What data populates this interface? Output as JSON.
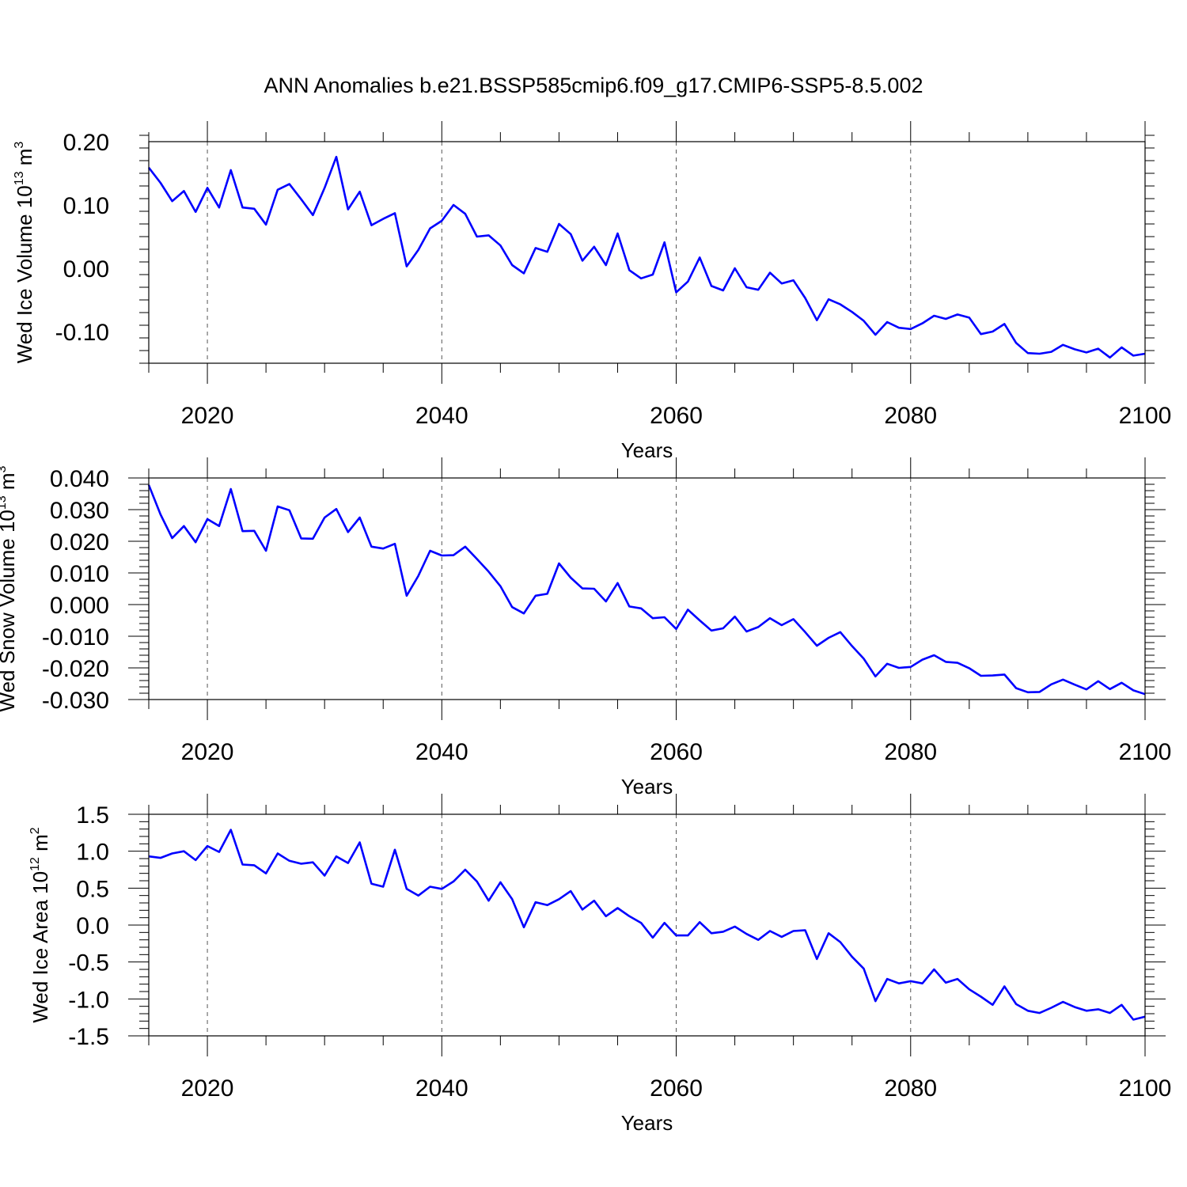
{
  "title": "ANN Anomalies b.e21.BSSP585cmip6.f09_g17.CMIP6-SSP5-8.5.002",
  "colors": {
    "line": "#0000ff",
    "axes": "#000000",
    "grid": "#555555"
  },
  "chart_data": [
    {
      "type": "line",
      "ylabel": {
        "main": "Wed Ice Volume 10",
        "exp": "13",
        "post": " m",
        "unit_exp": "3"
      },
      "xlabel": "Years",
      "xlim": [
        2015,
        2100
      ],
      "ylim": [
        -0.15,
        0.2
      ],
      "xticks": [
        2020,
        2040,
        2060,
        2080,
        2100
      ],
      "yticks": [
        -0.1,
        0.0,
        0.1,
        0.2
      ],
      "ytick_labels": [
        "-0.10",
        "0.00",
        "0.10",
        "0.20"
      ],
      "x_grid": "dashed at major x ticks",
      "series": [
        {
          "x": [
            2015,
            2016,
            2017,
            2018,
            2019,
            2020,
            2021,
            2022,
            2023,
            2024,
            2025,
            2026,
            2027,
            2028,
            2029,
            2030,
            2031,
            2032,
            2033,
            2034,
            2035,
            2036,
            2037,
            2038,
            2039,
            2040,
            2041,
            2042,
            2043,
            2044,
            2045,
            2046,
            2047,
            2048,
            2049,
            2050,
            2051,
            2052,
            2053,
            2054,
            2055,
            2056,
            2057,
            2058,
            2059,
            2060,
            2061,
            2062,
            2063,
            2064,
            2065,
            2066,
            2067,
            2068,
            2069,
            2070,
            2071,
            2072,
            2073,
            2074,
            2075,
            2076,
            2077,
            2078,
            2079,
            2080,
            2081,
            2082,
            2083,
            2084,
            2085,
            2086,
            2087,
            2088,
            2089,
            2090,
            2091,
            2092,
            2093,
            2094,
            2095,
            2096,
            2097,
            2098,
            2099,
            2100
          ],
          "values": [
            0.159,
            0.135,
            0.106,
            0.122,
            0.089,
            0.127,
            0.096,
            0.155,
            0.096,
            0.094,
            0.069,
            0.124,
            0.133,
            0.109,
            0.084,
            0.127,
            0.176,
            0.093,
            0.121,
            0.068,
            0.078,
            0.087,
            0.003,
            0.029,
            0.063,
            0.075,
            0.1,
            0.086,
            0.05,
            0.052,
            0.036,
            0.005,
            -0.008,
            0.032,
            0.026,
            0.07,
            0.054,
            0.012,
            0.034,
            0.005,
            0.055,
            -0.003,
            -0.016,
            -0.01,
            0.041,
            -0.038,
            -0.021,
            0.017,
            -0.028,
            -0.035,
            0.0,
            -0.03,
            -0.034,
            -0.007,
            -0.024,
            -0.019,
            -0.047,
            -0.082,
            -0.049,
            -0.057,
            -0.069,
            -0.083,
            -0.105,
            -0.085,
            -0.094,
            -0.096,
            -0.087,
            -0.075,
            -0.08,
            -0.073,
            -0.078,
            -0.104,
            -0.1,
            -0.088,
            -0.118,
            -0.134,
            -0.135,
            -0.132,
            -0.121,
            -0.128,
            -0.133,
            -0.127,
            -0.141,
            -0.125,
            -0.138,
            -0.135
          ]
        }
      ]
    },
    {
      "type": "line",
      "ylabel": {
        "main": "Wed Snow Volume 10",
        "exp": "13",
        "post": " m",
        "unit_exp": "3"
      },
      "xlabel": "Years",
      "xlim": [
        2015,
        2100
      ],
      "ylim": [
        -0.03,
        0.04
      ],
      "xticks": [
        2020,
        2040,
        2060,
        2080,
        2100
      ],
      "yticks": [
        -0.03,
        -0.02,
        -0.01,
        0.0,
        0.01,
        0.02,
        0.03,
        0.04
      ],
      "ytick_labels": [
        "-0.030",
        "-0.020",
        "-0.010",
        "0.000",
        "0.010",
        "0.020",
        "0.030",
        "0.040"
      ],
      "x_grid": "dashed at major x ticks",
      "series": [
        {
          "x": [
            2015,
            2016,
            2017,
            2018,
            2019,
            2020,
            2021,
            2022,
            2023,
            2024,
            2025,
            2026,
            2027,
            2028,
            2029,
            2030,
            2031,
            2032,
            2033,
            2034,
            2035,
            2036,
            2037,
            2038,
            2039,
            2040,
            2041,
            2042,
            2043,
            2044,
            2045,
            2046,
            2047,
            2048,
            2049,
            2050,
            2051,
            2052,
            2053,
            2054,
            2055,
            2056,
            2057,
            2058,
            2059,
            2060,
            2061,
            2062,
            2063,
            2064,
            2065,
            2066,
            2067,
            2068,
            2069,
            2070,
            2071,
            2072,
            2073,
            2074,
            2075,
            2076,
            2077,
            2078,
            2079,
            2080,
            2081,
            2082,
            2083,
            2084,
            2085,
            2086,
            2087,
            2088,
            2089,
            2090,
            2091,
            2092,
            2093,
            2094,
            2095,
            2096,
            2097,
            2098,
            2099,
            2100
          ],
          "values": [
            0.0378,
            0.0285,
            0.021,
            0.0248,
            0.0197,
            0.027,
            0.0248,
            0.0365,
            0.0232,
            0.0233,
            0.017,
            0.031,
            0.0298,
            0.0209,
            0.0208,
            0.0275,
            0.0302,
            0.0229,
            0.0275,
            0.0183,
            0.0177,
            0.0192,
            0.0028,
            0.0091,
            0.017,
            0.0155,
            0.0156,
            0.0183,
            0.0144,
            0.0104,
            0.0058,
            -0.0008,
            -0.0028,
            0.0028,
            0.0034,
            0.013,
            0.0085,
            0.0051,
            0.005,
            0.001,
            0.0068,
            -0.0006,
            -0.0012,
            -0.0043,
            -0.004,
            -0.0077,
            -0.0016,
            -0.005,
            -0.0082,
            -0.0075,
            -0.0038,
            -0.0085,
            -0.0071,
            -0.0043,
            -0.0065,
            -0.0046,
            -0.0087,
            -0.013,
            -0.0105,
            -0.0087,
            -0.0131,
            -0.0171,
            -0.0227,
            -0.0187,
            -0.02,
            -0.0197,
            -0.0174,
            -0.016,
            -0.0181,
            -0.0184,
            -0.0201,
            -0.0225,
            -0.0224,
            -0.0221,
            -0.0264,
            -0.0277,
            -0.0276,
            -0.0252,
            -0.0237,
            -0.0253,
            -0.0268,
            -0.0242,
            -0.0267,
            -0.0247,
            -0.0271,
            -0.0283
          ]
        }
      ]
    },
    {
      "type": "line",
      "ylabel": {
        "main": "Wed Ice Area 10",
        "exp": "12",
        "post": " m",
        "unit_exp": "2"
      },
      "xlabel": "Years",
      "xlim": [
        2015,
        2100
      ],
      "ylim": [
        -1.5,
        1.5
      ],
      "xticks": [
        2020,
        2040,
        2060,
        2080,
        2100
      ],
      "yticks": [
        -1.5,
        -1.0,
        -0.5,
        0.0,
        0.5,
        1.0,
        1.5
      ],
      "ytick_labels": [
        "-1.5",
        "-1.0",
        "-0.5",
        "0.0",
        "0.5",
        "1.0",
        "1.5"
      ],
      "x_grid": "dashed at major x ticks",
      "series": [
        {
          "x": [
            2015,
            2016,
            2017,
            2018,
            2019,
            2020,
            2021,
            2022,
            2023,
            2024,
            2025,
            2026,
            2027,
            2028,
            2029,
            2030,
            2031,
            2032,
            2033,
            2034,
            2035,
            2036,
            2037,
            2038,
            2039,
            2040,
            2041,
            2042,
            2043,
            2044,
            2045,
            2046,
            2047,
            2048,
            2049,
            2050,
            2051,
            2052,
            2053,
            2054,
            2055,
            2056,
            2057,
            2058,
            2059,
            2060,
            2061,
            2062,
            2063,
            2064,
            2065,
            2066,
            2067,
            2068,
            2069,
            2070,
            2071,
            2072,
            2073,
            2074,
            2075,
            2076,
            2077,
            2078,
            2079,
            2080,
            2081,
            2082,
            2083,
            2084,
            2085,
            2086,
            2087,
            2088,
            2089,
            2090,
            2091,
            2092,
            2093,
            2094,
            2095,
            2096,
            2097,
            2098,
            2099,
            2100
          ],
          "values": [
            0.93,
            0.91,
            0.97,
            1.0,
            0.88,
            1.07,
            0.99,
            1.29,
            0.82,
            0.81,
            0.7,
            0.97,
            0.87,
            0.83,
            0.85,
            0.67,
            0.93,
            0.84,
            1.12,
            0.56,
            0.52,
            1.02,
            0.49,
            0.4,
            0.52,
            0.49,
            0.59,
            0.75,
            0.59,
            0.33,
            0.58,
            0.35,
            -0.03,
            0.31,
            0.27,
            0.35,
            0.46,
            0.21,
            0.33,
            0.12,
            0.23,
            0.12,
            0.03,
            -0.17,
            0.03,
            -0.14,
            -0.14,
            0.04,
            -0.11,
            -0.09,
            -0.02,
            -0.12,
            -0.2,
            -0.08,
            -0.16,
            -0.08,
            -0.07,
            -0.46,
            -0.11,
            -0.23,
            -0.43,
            -0.59,
            -1.03,
            -0.73,
            -0.79,
            -0.76,
            -0.79,
            -0.6,
            -0.78,
            -0.73,
            -0.87,
            -0.97,
            -1.08,
            -0.83,
            -1.07,
            -1.16,
            -1.19,
            -1.12,
            -1.04,
            -1.11,
            -1.16,
            -1.14,
            -1.19,
            -1.08,
            -1.28,
            -1.24
          ]
        }
      ]
    }
  ]
}
